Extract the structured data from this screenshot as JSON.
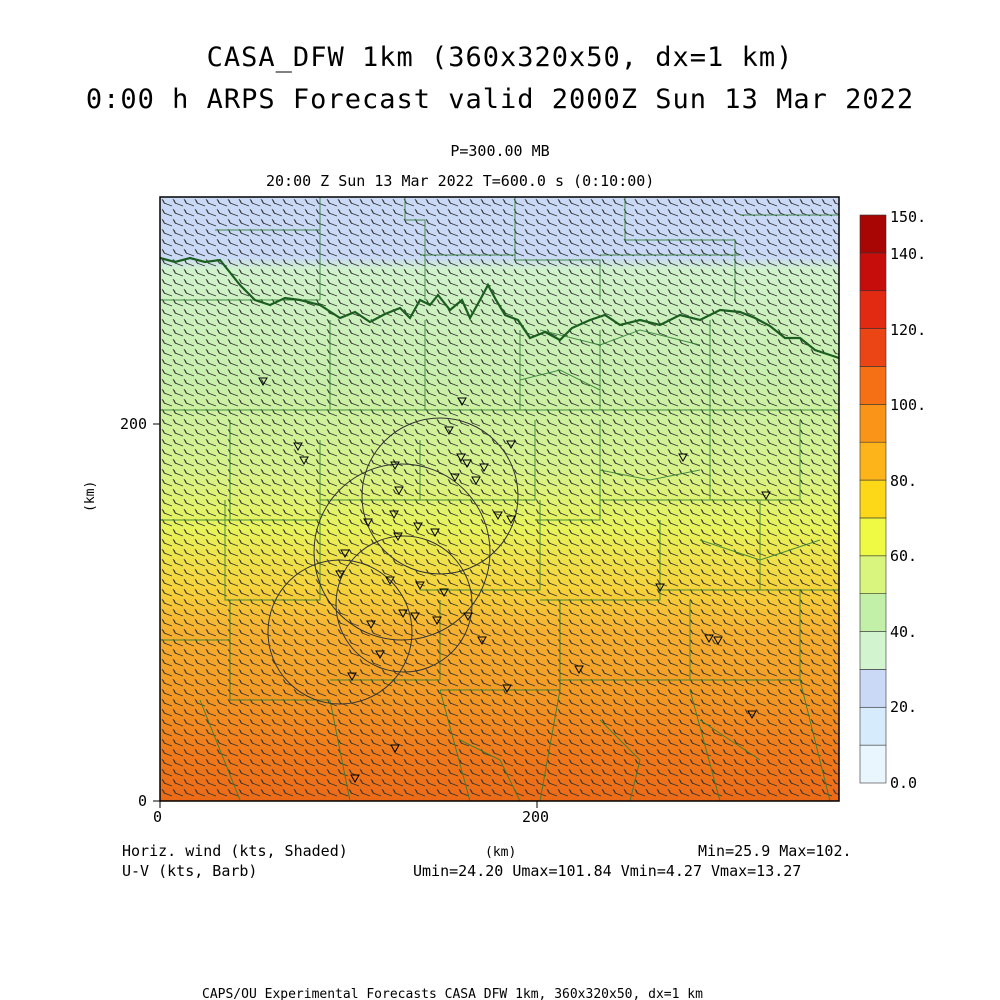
{
  "header": {
    "title_line1": "CASA_DFW 1km (360x320x50, dx=1 km)",
    "title_line2": "0:00 h ARPS Forecast valid 2000Z Sun 13 Mar 2022",
    "level": "P=300.00 MB",
    "valid_time": "20:00 Z Sun 13 Mar 2022    T=600.0 s (0:10:00)"
  },
  "axes": {
    "x_ticks": [
      "0",
      "200"
    ],
    "y_ticks": [
      "0",
      "200"
    ],
    "x_unit": "(km)",
    "y_unit": "(km)",
    "extent_km": [
      0,
      360,
      0,
      320
    ]
  },
  "colorbar": {
    "labels": [
      "0.0",
      "20.",
      "40.",
      "60.",
      "80.",
      "100.",
      "120.",
      "140.",
      "150."
    ],
    "colors": [
      "#eaf6fd",
      "#d6ebfb",
      "#c9d9f6",
      "#d2f5d0",
      "#c3f0a8",
      "#d9f57d",
      "#eefa44",
      "#fcd818",
      "#fcb41a",
      "#f99418",
      "#f56f15",
      "#ec4515",
      "#e22a12",
      "#c60d0c",
      "#a80505"
    ]
  },
  "footer": {
    "left_line1": "Horiz. wind (kts, Shaded)",
    "left_line2": "U-V (kts, Barb)",
    "center_unit": "(km)",
    "right_line1": "Min=25.9 Max=102.",
    "right_line2": "Umin=24.20 Umax=101.84 Vmin=4.27 Vmax=13.27",
    "credit": "CAPS/OU Experimental Forecasts  CASA DFW 1km, 360x320x50, dx=1 km"
  },
  "map": {
    "field": "horizontal wind speed (kts)",
    "field_min": 25.9,
    "field_max": 102.0,
    "features": [
      "county-borders",
      "state-border",
      "radar-range-rings",
      "radar-sites"
    ]
  }
}
